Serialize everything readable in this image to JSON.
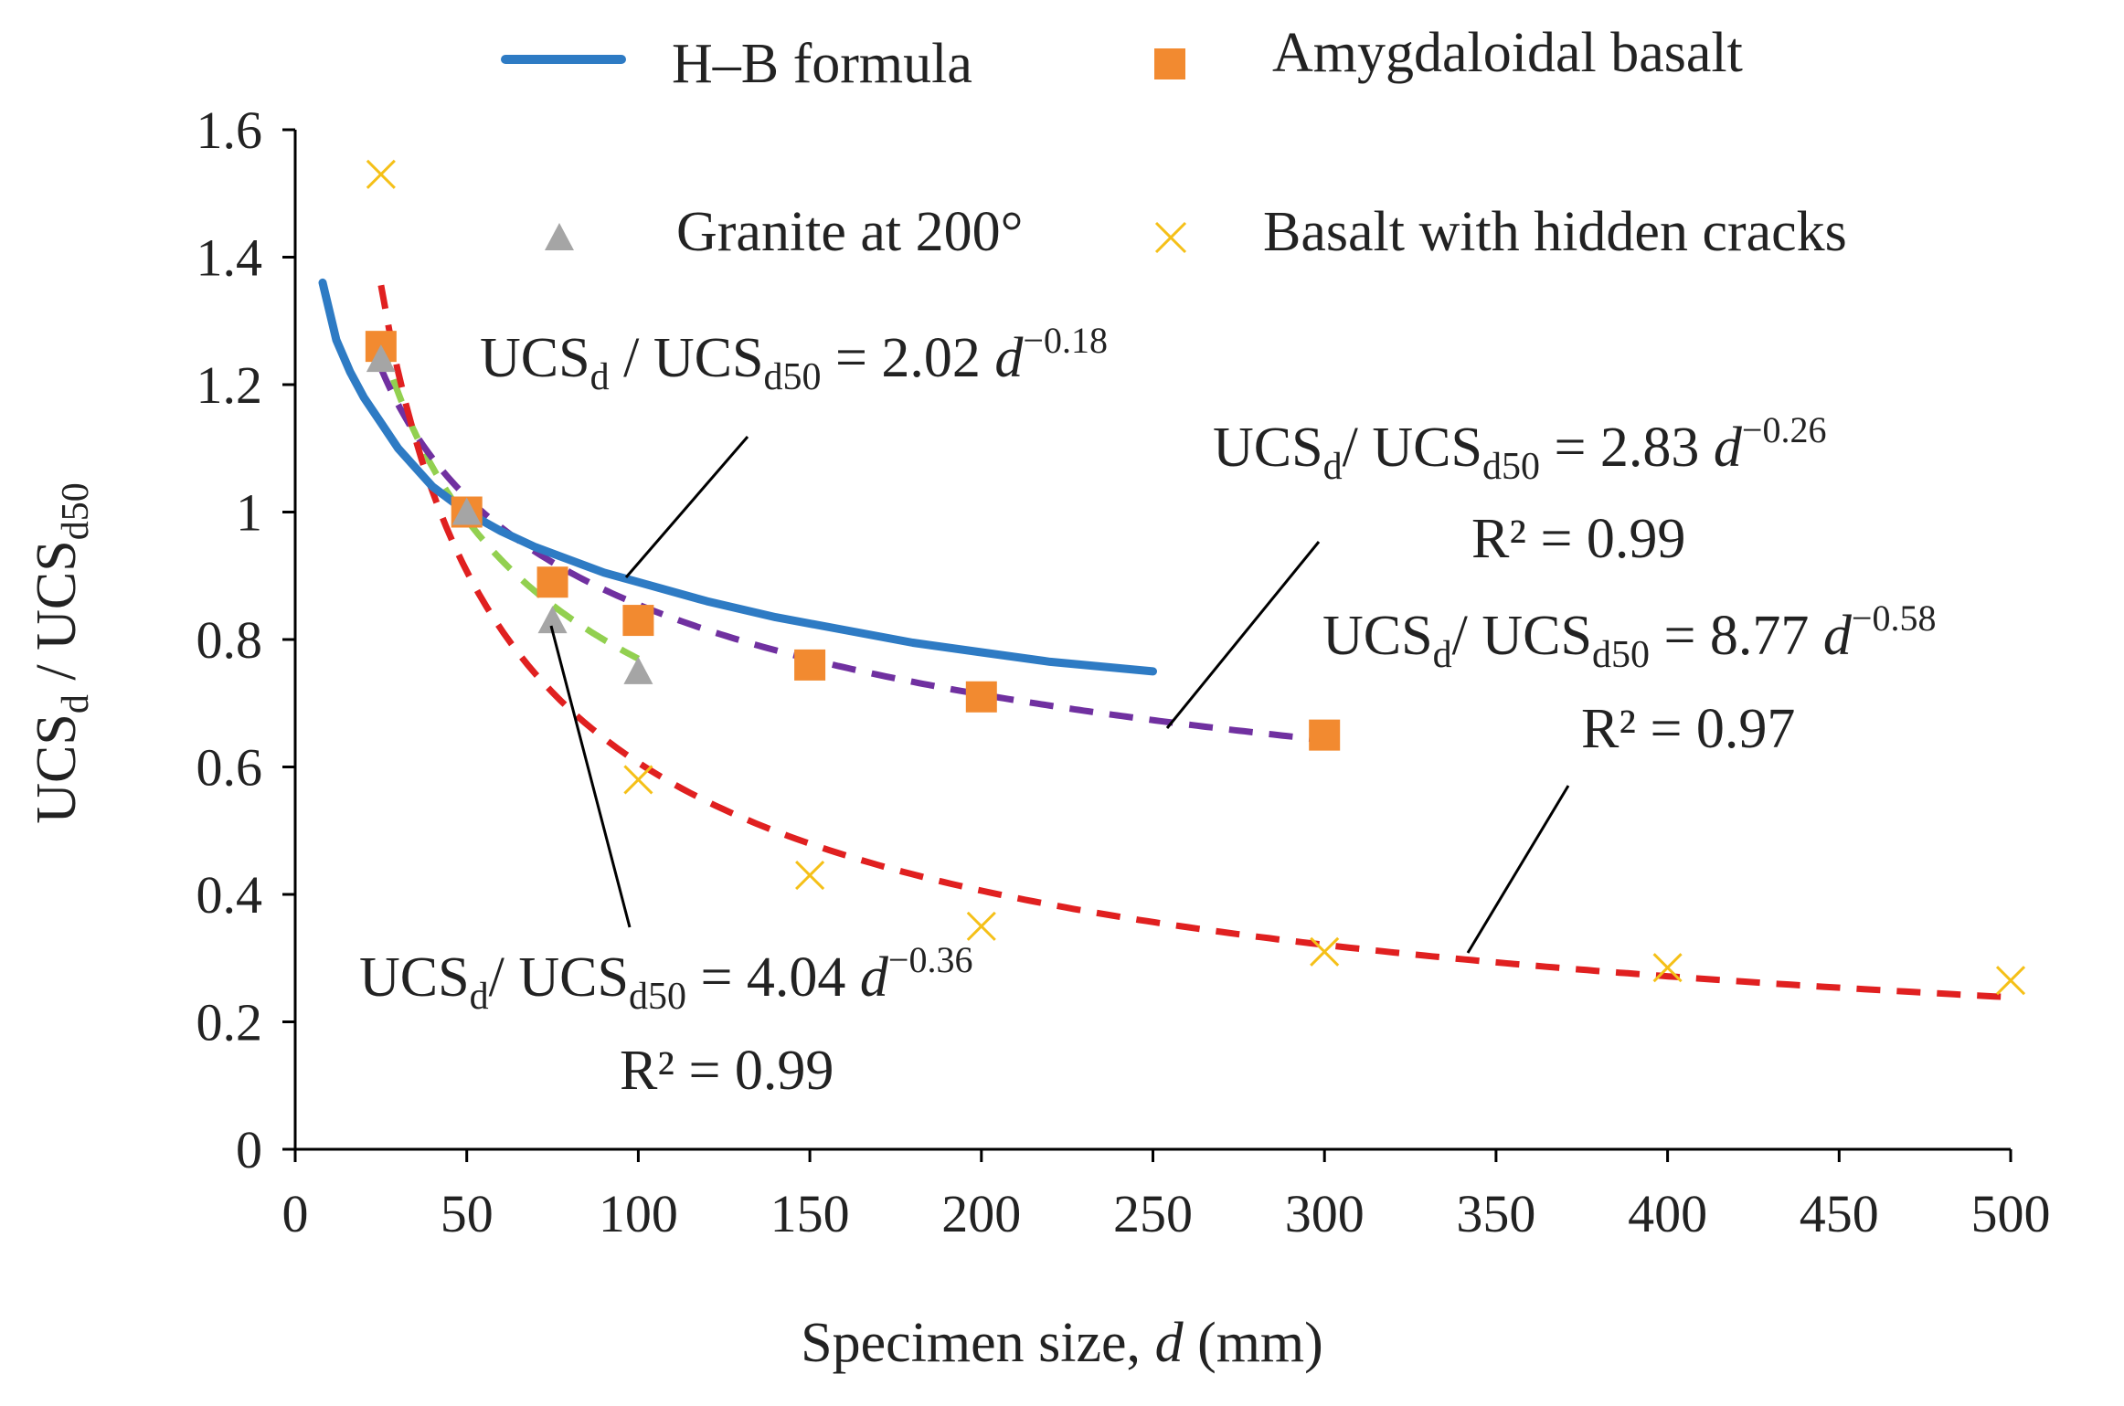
{
  "chart_data": {
    "type": "scatter",
    "title": "",
    "xlabel": {
      "prefix": "Specimen size, ",
      "var": "d",
      "suffix": " (mm)"
    },
    "ylabel": {
      "a": "UCS",
      "a_sub": "d",
      "sep": " / ",
      "b": "UCS",
      "b_sub": "d50"
    },
    "xlim": [
      0,
      500
    ],
    "ylim": [
      0,
      1.6
    ],
    "x_ticks": [
      0,
      50,
      100,
      150,
      200,
      250,
      300,
      350,
      400,
      450,
      500
    ],
    "y_ticks": [
      0,
      0.2,
      0.4,
      0.6,
      0.8,
      1,
      1.2,
      1.4,
      1.6
    ],
    "grid": false,
    "legend_position": "top",
    "series": [
      {
        "name": "H–B formula",
        "kind": "line",
        "color": "#2e7bc4",
        "x": [
          8,
          12,
          16,
          20,
          25,
          30,
          35,
          40,
          45,
          50,
          60,
          70,
          80,
          90,
          100,
          120,
          140,
          160,
          180,
          200,
          220,
          240,
          250
        ],
        "y": [
          1.36,
          1.27,
          1.22,
          1.18,
          1.14,
          1.1,
          1.07,
          1.04,
          1.02,
          1.0,
          0.97,
          0.945,
          0.925,
          0.905,
          0.89,
          0.86,
          0.835,
          0.815,
          0.795,
          0.78,
          0.765,
          0.755,
          0.75
        ]
      },
      {
        "name": "Amygdaloidal basalt",
        "kind": "marker",
        "marker": "square",
        "color": "#f28a30",
        "x": [
          25,
          50,
          75,
          100,
          150,
          200,
          300
        ],
        "y": [
          1.26,
          1.0,
          0.89,
          0.83,
          0.76,
          0.71,
          0.65
        ]
      },
      {
        "name": "Granite at 200°",
        "kind": "marker",
        "marker": "triangle",
        "color": "#a5a5a5",
        "x": [
          25,
          50,
          75,
          100
        ],
        "y": [
          1.24,
          1.0,
          0.83,
          0.75
        ]
      },
      {
        "name": "Basalt with hidden cracks",
        "kind": "marker",
        "marker": "x",
        "color": "#f5c018",
        "x": [
          25,
          100,
          150,
          200,
          300,
          400,
          500
        ],
        "y": [
          1.53,
          0.58,
          0.43,
          0.35,
          0.31,
          0.285,
          0.265
        ]
      }
    ],
    "fits": [
      {
        "name": "granite-fit",
        "color": "#92d050",
        "coef": 4.04,
        "exp": -0.36,
        "x_range": [
          25,
          100
        ],
        "lhs": "UCS",
        "lhs_sub": "d",
        "sep": "/ UCS",
        "rhs_sub": "d50",
        "eq_mid": " = 4.04 ",
        "var": "d",
        "exp_label": "−0.36",
        "r2": "R² = 0.99"
      },
      {
        "name": "amygdaloidal-fit",
        "color": "#7030a0",
        "coef": 2.83,
        "exp": -0.26,
        "x_range": [
          25,
          300
        ],
        "lhs": "UCS",
        "lhs_sub": "d",
        "sep": "/ UCS",
        "rhs_sub": "d50",
        "eq_mid": " = 2.83 ",
        "var": "d",
        "exp_label": "−0.26",
        "r2": "R² = 0.99"
      },
      {
        "name": "hidden-cracks-fit",
        "color": "#e02020",
        "coef": 8.77,
        "exp": -0.58,
        "x_range": [
          25,
          500
        ],
        "lhs": "UCS",
        "lhs_sub": "d",
        "sep": "/ UCS",
        "rhs_sub": "d50",
        "eq_mid": " = 8.77 ",
        "var": "d",
        "exp_label": "−0.58",
        "r2": "R² = 0.97"
      },
      {
        "name": "hb-fit",
        "color": "#2e7bc4",
        "coef": 2.02,
        "exp": -0.18,
        "lhs": "UCS",
        "lhs_sub": "d",
        "sep": " / UCS",
        "rhs_sub": "d50",
        "eq_mid": " = 2.02 ",
        "var": "d",
        "exp_label": "−0.18",
        "r2": ""
      }
    ]
  }
}
